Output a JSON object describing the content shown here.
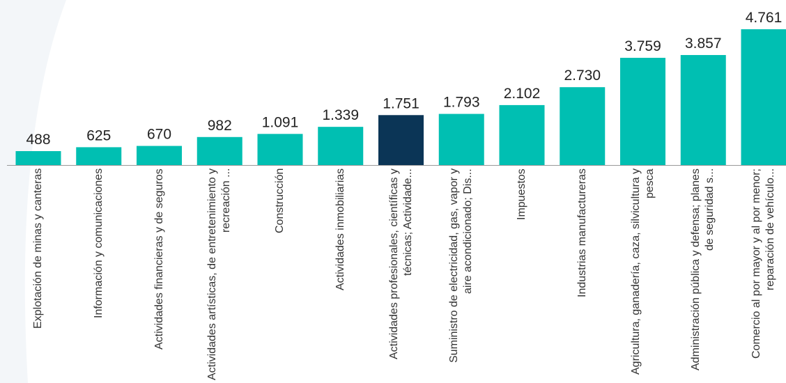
{
  "chart_data": {
    "type": "bar",
    "categories": [
      "Explotación de minas y canteras",
      "Información y comunicaciones",
      "Actividades financieras y de seguros",
      "Actividades artísticas, de entretenimiento y recreación ...",
      "Construcción",
      "Actividades inmobiliarias",
      "Actividades profesionales, científicas y técnicas; Actividade...",
      "Suministro de electricidad, gas, vapor y aire acondicionado; Dis...",
      "Impuestos",
      "Industrias manufactureras",
      "Agricultura, ganadería, caza, silvicultura y pesca",
      "Administración pública y defensa; planes de seguridad s...",
      "Comercio al por mayor y al por menor; reparación de vehículo..."
    ],
    "values": [
      488,
      625,
      670,
      982,
      1091,
      1339,
      1751,
      1793,
      2102,
      2730,
      3759,
      3857,
      4761
    ],
    "value_labels": [
      "488",
      "625",
      "670",
      "982",
      "1.091",
      "1.339",
      "1.751",
      "1.793",
      "2.102",
      "2.730",
      "3.759",
      "3.857",
      "4.761"
    ],
    "colors": [
      "#00bfb2",
      "#00bfb2",
      "#00bfb2",
      "#00bfb2",
      "#00bfb2",
      "#00bfb2",
      "#0b3556",
      "#00bfb2",
      "#00bfb2",
      "#00bfb2",
      "#00bfb2",
      "#00bfb2",
      "#00bfb2"
    ]
  }
}
